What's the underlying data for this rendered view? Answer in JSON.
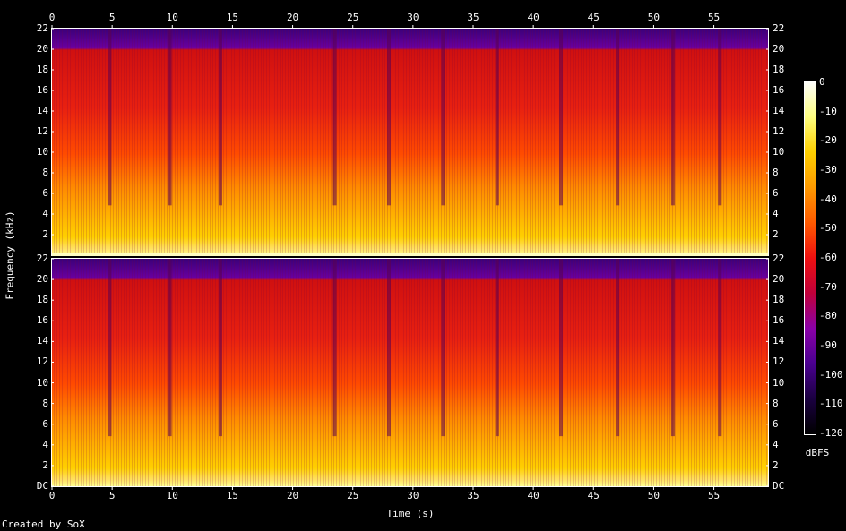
{
  "chart_data": {
    "type": "heatmap",
    "xlabel": "Time (s)",
    "ylabel": "Frequency (kHz)",
    "x_range": [
      0,
      59.5
    ],
    "y_range_khz": [
      0,
      22
    ],
    "x_ticks": [
      "0",
      "5",
      "10",
      "15",
      "20",
      "25",
      "30",
      "35",
      "40",
      "45",
      "50",
      "55"
    ],
    "y_ticks_top": [
      "22",
      "20",
      "18",
      "16",
      "14",
      "12",
      "10",
      "8",
      "6",
      "4",
      "2"
    ],
    "y_ticks_bottom": [
      "22",
      "20",
      "18",
      "16",
      "14",
      "12",
      "10",
      "8",
      "6",
      "4",
      "2",
      "DC"
    ],
    "colorbar": {
      "label": "dBFS",
      "range": [
        -120,
        0
      ],
      "ticks": [
        "0",
        "-10",
        "-20",
        "-30",
        "-40",
        "-50",
        "-60",
        "-70",
        "-80",
        "-90",
        "-100",
        "-110",
        "-120"
      ],
      "colors": [
        "#000000",
        "#1a0040",
        "#4a0090",
        "#8a00a8",
        "#c0003a",
        "#ee1010",
        "#ff5a00",
        "#ff9a00",
        "#ffd000",
        "#ffff80",
        "#ffffff"
      ]
    },
    "channels": 2,
    "band_cutoff_khz": 20,
    "dips_seconds": [
      4.8,
      9.8,
      14.0,
      23.5,
      28.0,
      32.5,
      37.0,
      42.3,
      47.0,
      51.6,
      55.5
    ]
  },
  "footer": {
    "credit": "Created by SoX"
  }
}
